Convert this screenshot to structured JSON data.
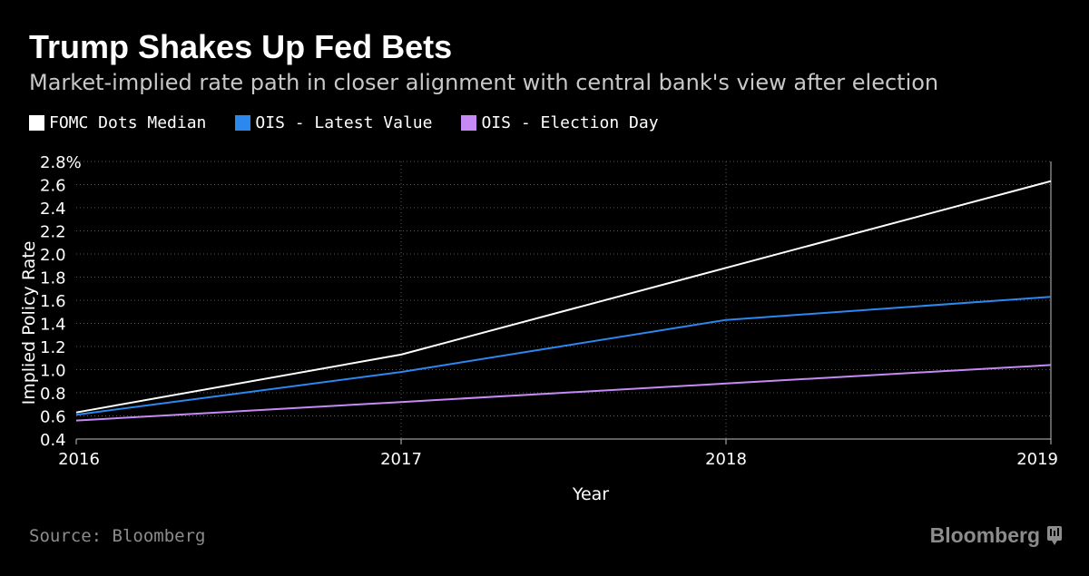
{
  "colors": {
    "background": "#000000",
    "fomc": "#ffffff",
    "ois_latest": "#2b88ee",
    "ois_election": "#c58af5",
    "muted_text": "#8c8c8c",
    "gridline": "#595959"
  },
  "footer": {
    "source": "Source: Bloomberg",
    "brand": "Bloomberg",
    "brand_icon": "bloomberg-terminal-icon"
  },
  "chart_data": {
    "type": "line",
    "title": "Trump Shakes Up Fed Bets",
    "subtitle": "Market-implied rate path in closer alignment with central bank's view after election",
    "xlabel": "Year",
    "ylabel": "Implied Policy Rate",
    "xlim": [
      2016,
      2019
    ],
    "ylim": [
      0.4,
      2.8
    ],
    "x_ticks": [
      "2016",
      "2017",
      "2018",
      "2019"
    ],
    "y_ticks": [
      "0.4",
      "0.6",
      "0.8",
      "1.0",
      "1.2",
      "1.4",
      "1.6",
      "1.8",
      "2.0",
      "2.2",
      "2.4",
      "2.6",
      "2.8%"
    ],
    "grid": true,
    "legend_position": "top-left",
    "series": [
      {
        "name": "FOMC Dots Median",
        "color": "#ffffff",
        "points": [
          [
            2016,
            0.63
          ],
          [
            2017,
            1.13
          ],
          [
            2018,
            1.88
          ],
          [
            2019,
            2.63
          ]
        ]
      },
      {
        "name": "OIS - Latest Value",
        "color": "#2b88ee",
        "points": [
          [
            2016,
            0.61
          ],
          [
            2017,
            0.98
          ],
          [
            2018,
            1.43
          ],
          [
            2019,
            1.63
          ]
        ]
      },
      {
        "name": "OIS - Election Day",
        "color": "#c58af5",
        "points": [
          [
            2016,
            0.56
          ],
          [
            2017,
            0.72
          ],
          [
            2018,
            0.88
          ],
          [
            2019,
            1.04
          ]
        ]
      }
    ]
  }
}
